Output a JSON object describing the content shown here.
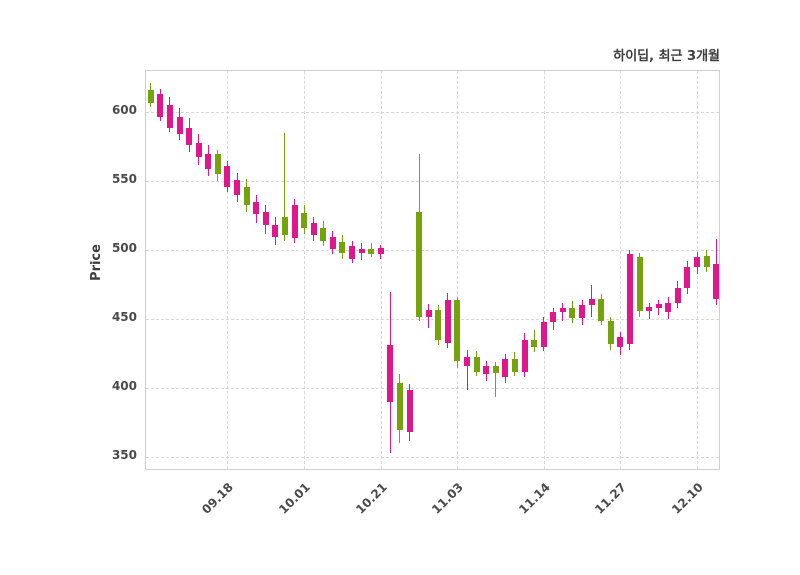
{
  "title": "하이딥, 최근 3개월",
  "ylabel": "Price",
  "chart_data": {
    "type": "candlestick",
    "title": "하이딥, 최근 3개월",
    "ylabel": "Price",
    "up_color": "#e0168c",
    "down_color": "#74a30c",
    "grid": true,
    "ylim": [
      340,
      630
    ],
    "yticks": [
      350,
      400,
      450,
      500,
      550,
      600
    ],
    "xtick_labels": [
      "09.18",
      "10.01",
      "10.21",
      "11.03",
      "11.14",
      "11.27",
      "12.10"
    ],
    "xtick_indices": [
      8,
      16,
      24,
      32,
      41,
      49,
      57
    ],
    "ohlc_format": [
      "open",
      "high",
      "low",
      "close"
    ],
    "ohlc": [
      [
        616,
        621,
        604,
        607
      ],
      [
        597,
        617,
        594,
        613
      ],
      [
        589,
        611,
        586,
        605
      ],
      [
        584,
        603,
        580,
        597
      ],
      [
        576,
        596,
        571,
        589
      ],
      [
        568,
        584,
        562,
        578
      ],
      [
        559,
        576,
        554,
        570
      ],
      [
        570,
        573,
        550,
        555
      ],
      [
        546,
        565,
        542,
        561
      ],
      [
        540,
        556,
        535,
        551
      ],
      [
        546,
        552,
        528,
        533
      ],
      [
        526,
        540,
        520,
        535
      ],
      [
        518,
        533,
        512,
        528
      ],
      [
        510,
        524,
        504,
        518
      ],
      [
        524,
        585,
        507,
        511
      ],
      [
        509,
        537,
        505,
        533
      ],
      [
        527,
        533,
        512,
        516
      ],
      [
        511,
        524,
        507,
        520
      ],
      [
        516,
        521,
        503,
        507
      ],
      [
        501,
        514,
        497,
        510
      ],
      [
        506,
        511,
        494,
        498
      ],
      [
        494,
        507,
        491,
        503
      ],
      [
        498,
        505,
        493,
        501
      ],
      [
        501,
        505,
        495,
        497
      ],
      [
        497,
        504,
        494,
        502
      ],
      [
        390,
        470,
        353,
        431
      ],
      [
        404,
        410,
        360,
        370
      ],
      [
        368,
        403,
        362,
        399
      ],
      [
        528,
        570,
        449,
        452
      ],
      [
        452,
        461,
        444,
        457
      ],
      [
        457,
        460,
        431,
        435
      ],
      [
        433,
        469,
        429,
        464
      ],
      [
        464,
        466,
        415,
        420
      ],
      [
        416,
        428,
        399,
        423
      ],
      [
        423,
        427,
        409,
        412
      ],
      [
        410,
        420,
        405,
        416
      ],
      [
        416,
        419,
        394,
        411
      ],
      [
        408,
        425,
        404,
        421
      ],
      [
        421,
        426,
        409,
        412
      ],
      [
        412,
        440,
        408,
        435
      ],
      [
        435,
        442,
        426,
        430
      ],
      [
        430,
        452,
        427,
        448
      ],
      [
        448,
        458,
        442,
        455
      ],
      [
        455,
        462,
        449,
        458
      ],
      [
        458,
        463,
        447,
        451
      ],
      [
        451,
        464,
        446,
        460
      ],
      [
        460,
        475,
        452,
        465
      ],
      [
        465,
        468,
        446,
        449
      ],
      [
        449,
        452,
        428,
        432
      ],
      [
        430,
        441,
        424,
        437
      ],
      [
        432,
        500,
        428,
        497
      ],
      [
        495,
        498,
        452,
        456
      ],
      [
        456,
        462,
        450,
        459
      ],
      [
        458,
        464,
        453,
        461
      ],
      [
        455,
        466,
        450,
        462
      ],
      [
        462,
        478,
        458,
        473
      ],
      [
        473,
        492,
        468,
        488
      ],
      [
        488,
        499,
        483,
        495
      ],
      [
        496,
        500,
        484,
        488
      ],
      [
        465,
        508,
        460,
        490
      ]
    ]
  }
}
